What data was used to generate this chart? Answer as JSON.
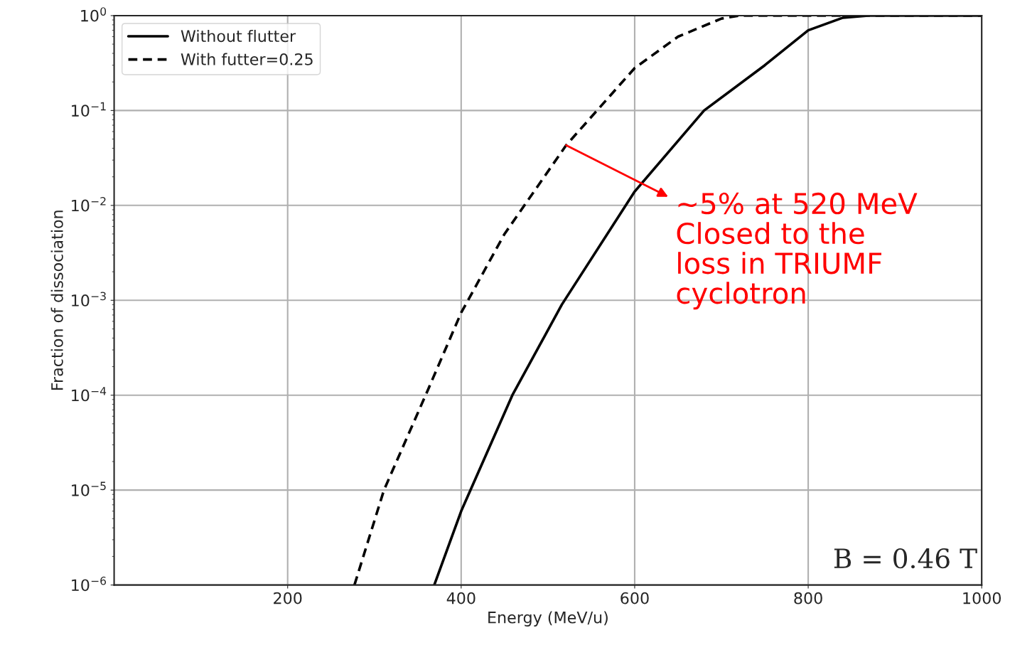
{
  "chart_data": {
    "type": "line",
    "xlabel": "Energy (MeV/u)",
    "ylabel": "Fraction of dissociation",
    "xlim": [
      0,
      1000
    ],
    "xticks": [
      200,
      400,
      600,
      800,
      1000
    ],
    "ylim": [
      1e-06,
      1
    ],
    "log": "y",
    "yticks": [
      {
        "value": 1e-06,
        "label": "10$^{−6}$"
      },
      {
        "value": 1e-05,
        "label": "10$^{−5}$"
      },
      {
        "value": 0.0001,
        "label": "10$^{−4}$"
      },
      {
        "value": 0.001,
        "label": "10$^{−3}$"
      },
      {
        "value": 0.01,
        "label": "10$^{−2}$"
      },
      {
        "value": 0.1,
        "label": "10$^{−1}$"
      },
      {
        "value": 1,
        "label": "10$^{0}$"
      }
    ],
    "grid": true,
    "legend": "top left",
    "series": [
      {
        "name": "Without flutter",
        "color": "#000000",
        "line_style": "solid",
        "x": [
          369,
          400,
          459,
          516,
          600,
          680,
          750,
          800,
          840,
          869,
          1000
        ],
        "values": [
          1e-06,
          6e-06,
          0.0001,
          0.0009,
          0.014,
          0.1,
          0.3,
          0.7,
          0.95,
          1,
          1
        ]
      },
      {
        "name": "With futter=0.25",
        "color": "#000000",
        "line_style": "dashed",
        "x": [
          277,
          311,
          361,
          400,
          450,
          521,
          600,
          650,
          700,
          721,
          1000
        ],
        "values": [
          1e-06,
          1e-05,
          0.00011,
          0.00074,
          0.005,
          0.043,
          0.28,
          0.6,
          0.93,
          1,
          1
        ]
      }
    ],
    "annotations": [
      {
        "text": "~5% at 520 MeV\nClosed to the\nloss in TRIUMF\ncyclotron",
        "x": 521,
        "y": 0.043
      },
      "B = 0.46 T"
    ]
  }
}
